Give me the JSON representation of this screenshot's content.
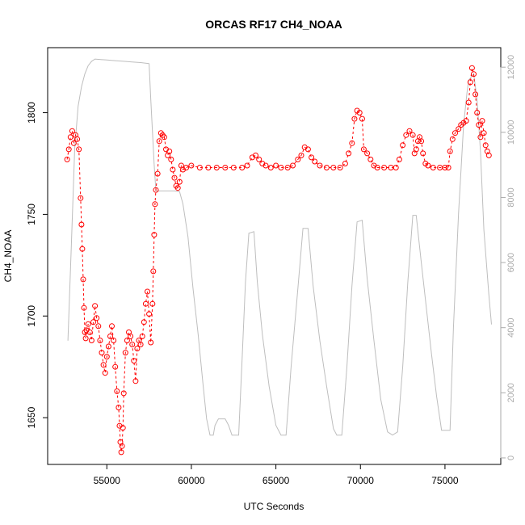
{
  "chart_data": {
    "type": "scatter",
    "title": "ORCAS RF17 CH4_NOAA",
    "xlabel": "UTC Seconds",
    "ylabel": "CH4_NOAA",
    "xlim": [
      51500,
      78300
    ],
    "ylim": [
      1627,
      1832
    ],
    "y2lim": [
      -200,
      12600
    ],
    "x_ticks": [
      55000,
      60000,
      65000,
      70000,
      75000
    ],
    "y_ticks": [
      1650,
      1700,
      1750,
      1800
    ],
    "y2_ticks": [
      0,
      2000,
      4000,
      6000,
      8000,
      10000,
      12000
    ],
    "x_tick_labels": [
      "55000",
      "60000",
      "65000",
      "70000",
      "75000"
    ],
    "y_tick_labels": [
      "1650",
      "1700",
      "1750",
      "1800"
    ],
    "y2_tick_labels": [
      "0",
      "2000",
      "4000",
      "6000",
      "8000",
      "10000",
      "12000"
    ],
    "grid": false,
    "colors": {
      "ch4": "#ff0000",
      "altitude": "#bebebe",
      "right_axis": "#aaaaaa"
    },
    "series": [
      {
        "style": "points-with-dashed-line",
        "color": "#ff0000",
        "axis": "left",
        "points": [
          [
            52650,
            1777
          ],
          [
            52750,
            1782
          ],
          [
            52850,
            1788
          ],
          [
            52950,
            1791
          ],
          [
            53050,
            1785
          ],
          [
            53150,
            1789
          ],
          [
            53250,
            1787
          ],
          [
            53350,
            1782
          ],
          [
            53450,
            1758
          ],
          [
            53500,
            1745
          ],
          [
            53550,
            1733
          ],
          [
            53600,
            1718
          ],
          [
            53650,
            1704
          ],
          [
            53700,
            1692
          ],
          [
            53750,
            1689
          ],
          [
            53800,
            1693
          ],
          [
            53900,
            1696
          ],
          [
            54000,
            1692
          ],
          [
            54100,
            1688
          ],
          [
            54200,
            1697
          ],
          [
            54300,
            1705
          ],
          [
            54400,
            1699
          ],
          [
            54500,
            1695
          ],
          [
            54600,
            1688
          ],
          [
            54700,
            1682
          ],
          [
            54800,
            1676
          ],
          [
            54900,
            1672
          ],
          [
            55000,
            1680
          ],
          [
            55100,
            1685
          ],
          [
            55200,
            1690
          ],
          [
            55300,
            1695
          ],
          [
            55400,
            1688
          ],
          [
            55500,
            1675
          ],
          [
            55600,
            1663
          ],
          [
            55700,
            1655
          ],
          [
            55750,
            1646
          ],
          [
            55800,
            1638
          ],
          [
            55850,
            1633
          ],
          [
            55900,
            1636
          ],
          [
            55950,
            1645
          ],
          [
            56000,
            1662
          ],
          [
            56100,
            1682
          ],
          [
            56200,
            1688
          ],
          [
            56300,
            1692
          ],
          [
            56400,
            1690
          ],
          [
            56500,
            1686
          ],
          [
            56600,
            1678
          ],
          [
            56700,
            1668
          ],
          [
            56800,
            1684
          ],
          [
            56900,
            1688
          ],
          [
            57000,
            1686
          ],
          [
            57100,
            1690
          ],
          [
            57200,
            1697
          ],
          [
            57300,
            1706
          ],
          [
            57400,
            1712
          ],
          [
            57500,
            1701
          ],
          [
            57600,
            1687
          ],
          [
            57700,
            1706
          ],
          [
            57750,
            1722
          ],
          [
            57800,
            1740
          ],
          [
            57850,
            1755
          ],
          [
            57900,
            1762
          ],
          [
            58000,
            1770
          ],
          [
            58100,
            1786
          ],
          [
            58200,
            1790
          ],
          [
            58300,
            1789
          ],
          [
            58400,
            1788
          ],
          [
            58500,
            1782
          ],
          [
            58600,
            1779
          ],
          [
            58700,
            1781
          ],
          [
            58800,
            1777
          ],
          [
            58900,
            1772
          ],
          [
            59000,
            1768
          ],
          [
            59100,
            1764
          ],
          [
            59200,
            1763
          ],
          [
            59300,
            1766
          ],
          [
            59400,
            1774
          ],
          [
            59500,
            1772
          ],
          [
            59700,
            1773
          ],
          [
            60000,
            1774
          ],
          [
            60500,
            1773
          ],
          [
            61000,
            1773
          ],
          [
            61500,
            1773
          ],
          [
            62000,
            1773
          ],
          [
            62500,
            1773
          ],
          [
            63000,
            1773
          ],
          [
            63300,
            1774
          ],
          [
            63600,
            1778
          ],
          [
            63800,
            1779
          ],
          [
            64000,
            1777
          ],
          [
            64200,
            1775
          ],
          [
            64400,
            1774
          ],
          [
            64700,
            1773
          ],
          [
            65000,
            1774
          ],
          [
            65300,
            1773
          ],
          [
            65700,
            1773
          ],
          [
            66000,
            1774
          ],
          [
            66300,
            1777
          ],
          [
            66500,
            1779
          ],
          [
            66700,
            1783
          ],
          [
            66900,
            1782
          ],
          [
            67100,
            1778
          ],
          [
            67300,
            1776
          ],
          [
            67600,
            1774
          ],
          [
            68000,
            1773
          ],
          [
            68400,
            1773
          ],
          [
            68800,
            1773
          ],
          [
            69100,
            1775
          ],
          [
            69300,
            1780
          ],
          [
            69500,
            1785
          ],
          [
            69650,
            1797
          ],
          [
            69800,
            1801
          ],
          [
            69950,
            1800
          ],
          [
            70100,
            1797
          ],
          [
            70200,
            1782
          ],
          [
            70400,
            1780
          ],
          [
            70600,
            1777
          ],
          [
            70800,
            1774
          ],
          [
            71000,
            1773
          ],
          [
            71400,
            1773
          ],
          [
            71800,
            1773
          ],
          [
            72100,
            1773
          ],
          [
            72300,
            1777
          ],
          [
            72500,
            1784
          ],
          [
            72700,
            1789
          ],
          [
            72900,
            1791
          ],
          [
            73100,
            1789
          ],
          [
            73200,
            1780
          ],
          [
            73300,
            1782
          ],
          [
            73400,
            1786
          ],
          [
            73500,
            1788
          ],
          [
            73600,
            1786
          ],
          [
            73700,
            1780
          ],
          [
            73850,
            1775
          ],
          [
            74000,
            1774
          ],
          [
            74300,
            1773
          ],
          [
            74700,
            1773
          ],
          [
            75000,
            1773
          ],
          [
            75200,
            1773
          ],
          [
            75300,
            1781
          ],
          [
            75450,
            1787
          ],
          [
            75600,
            1790
          ],
          [
            75800,
            1792
          ],
          [
            75950,
            1794
          ],
          [
            76100,
            1795
          ],
          [
            76250,
            1796
          ],
          [
            76400,
            1805
          ],
          [
            76500,
            1815
          ],
          [
            76600,
            1822
          ],
          [
            76700,
            1819
          ],
          [
            76800,
            1809
          ],
          [
            76900,
            1800
          ],
          [
            77000,
            1794
          ],
          [
            77100,
            1788
          ],
          [
            77200,
            1796
          ],
          [
            77300,
            1790
          ],
          [
            77400,
            1784
          ],
          [
            77500,
            1781
          ],
          [
            77600,
            1779
          ]
        ]
      },
      {
        "style": "line",
        "color": "#bebebe",
        "axis": "right",
        "points": [
          [
            52700,
            3600
          ],
          [
            52900,
            6500
          ],
          [
            53100,
            9500
          ],
          [
            53300,
            10800
          ],
          [
            53500,
            11400
          ],
          [
            53700,
            11800
          ],
          [
            53900,
            12050
          ],
          [
            54100,
            12180
          ],
          [
            54300,
            12250
          ],
          [
            54500,
            12240
          ],
          [
            55000,
            12220
          ],
          [
            55500,
            12200
          ],
          [
            56000,
            12180
          ],
          [
            56500,
            12160
          ],
          [
            57000,
            12140
          ],
          [
            57300,
            12120
          ],
          [
            57500,
            12110
          ],
          [
            57600,
            11000
          ],
          [
            57700,
            10000
          ],
          [
            57800,
            9000
          ],
          [
            57900,
            8200
          ],
          [
            58000,
            8200
          ],
          [
            58500,
            8200
          ],
          [
            59000,
            8200
          ],
          [
            59300,
            8180
          ],
          [
            59500,
            7800
          ],
          [
            59800,
            6800
          ],
          [
            60100,
            5200
          ],
          [
            60400,
            3800
          ],
          [
            60700,
            2200
          ],
          [
            60900,
            1200
          ],
          [
            61100,
            700
          ],
          [
            61300,
            700
          ],
          [
            61400,
            1000
          ],
          [
            61600,
            1200
          ],
          [
            61800,
            1200
          ],
          [
            62000,
            1200
          ],
          [
            62200,
            1000
          ],
          [
            62400,
            700
          ],
          [
            62800,
            700
          ],
          [
            63000,
            3000
          ],
          [
            63200,
            5400
          ],
          [
            63400,
            6900
          ],
          [
            63700,
            6950
          ],
          [
            63900,
            5400
          ],
          [
            64200,
            3800
          ],
          [
            64600,
            2200
          ],
          [
            65000,
            1000
          ],
          [
            65300,
            700
          ],
          [
            65600,
            700
          ],
          [
            65900,
            2800
          ],
          [
            66300,
            5200
          ],
          [
            66600,
            7050
          ],
          [
            66900,
            7050
          ],
          [
            67200,
            5300
          ],
          [
            67600,
            3600
          ],
          [
            68000,
            2200
          ],
          [
            68400,
            900
          ],
          [
            68600,
            700
          ],
          [
            68900,
            700
          ],
          [
            69200,
            2800
          ],
          [
            69500,
            5300
          ],
          [
            69800,
            7250
          ],
          [
            70100,
            7300
          ],
          [
            70400,
            5500
          ],
          [
            70800,
            3600
          ],
          [
            71200,
            1800
          ],
          [
            71600,
            800
          ],
          [
            71900,
            700
          ],
          [
            72200,
            800
          ],
          [
            72500,
            2800
          ],
          [
            72800,
            5400
          ],
          [
            73100,
            7450
          ],
          [
            73300,
            7450
          ],
          [
            73600,
            6000
          ],
          [
            73900,
            4600
          ],
          [
            74200,
            3200
          ],
          [
            74500,
            1900
          ],
          [
            74800,
            850
          ],
          [
            75000,
            850
          ],
          [
            75300,
            850
          ],
          [
            75500,
            4000
          ],
          [
            75800,
            7500
          ],
          [
            76100,
            10200
          ],
          [
            76300,
            11200
          ],
          [
            76400,
            11600
          ],
          [
            76700,
            11800
          ],
          [
            76900,
            11000
          ],
          [
            77100,
            9400
          ],
          [
            77300,
            7000
          ],
          [
            77600,
            5000
          ],
          [
            77750,
            4100
          ]
        ]
      }
    ]
  }
}
